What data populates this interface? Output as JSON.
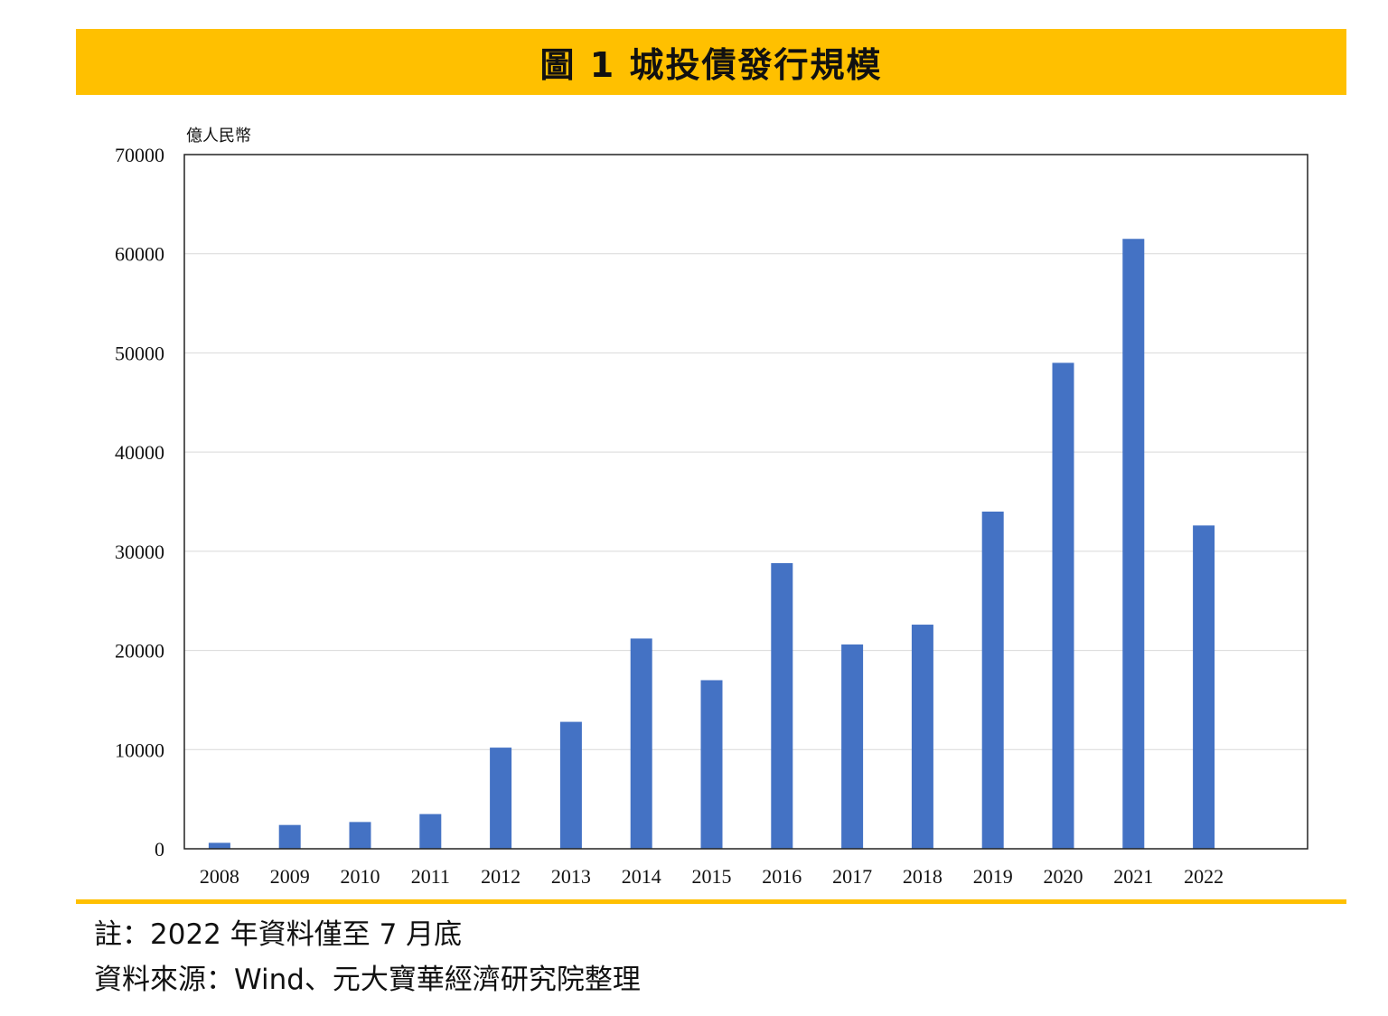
{
  "header": {
    "title": "圖 1  城投債發行規模"
  },
  "notes": {
    "note": "註：2022 年資料僅至 7 月底",
    "source": "資料來源：Wind、元大寶華經濟研究院整理"
  },
  "colors": {
    "bar": "#4472c4",
    "accent": "#ffc000",
    "grid": "#d9d9d9"
  },
  "chart_data": {
    "type": "bar",
    "ylabel": "億人民幣",
    "ylim": [
      0,
      70000
    ],
    "yticks": [
      0,
      10000,
      20000,
      30000,
      40000,
      50000,
      60000,
      70000
    ],
    "grid": true,
    "categories": [
      "2008",
      "2009",
      "2010",
      "2011",
      "2012",
      "2013",
      "2014",
      "2015",
      "2016",
      "2017",
      "2018",
      "2019",
      "2020",
      "2021",
      "2022"
    ],
    "values": [
      600,
      2400,
      2700,
      3500,
      10200,
      12800,
      21200,
      17000,
      28800,
      20600,
      22600,
      34000,
      49000,
      61500,
      32600
    ]
  }
}
